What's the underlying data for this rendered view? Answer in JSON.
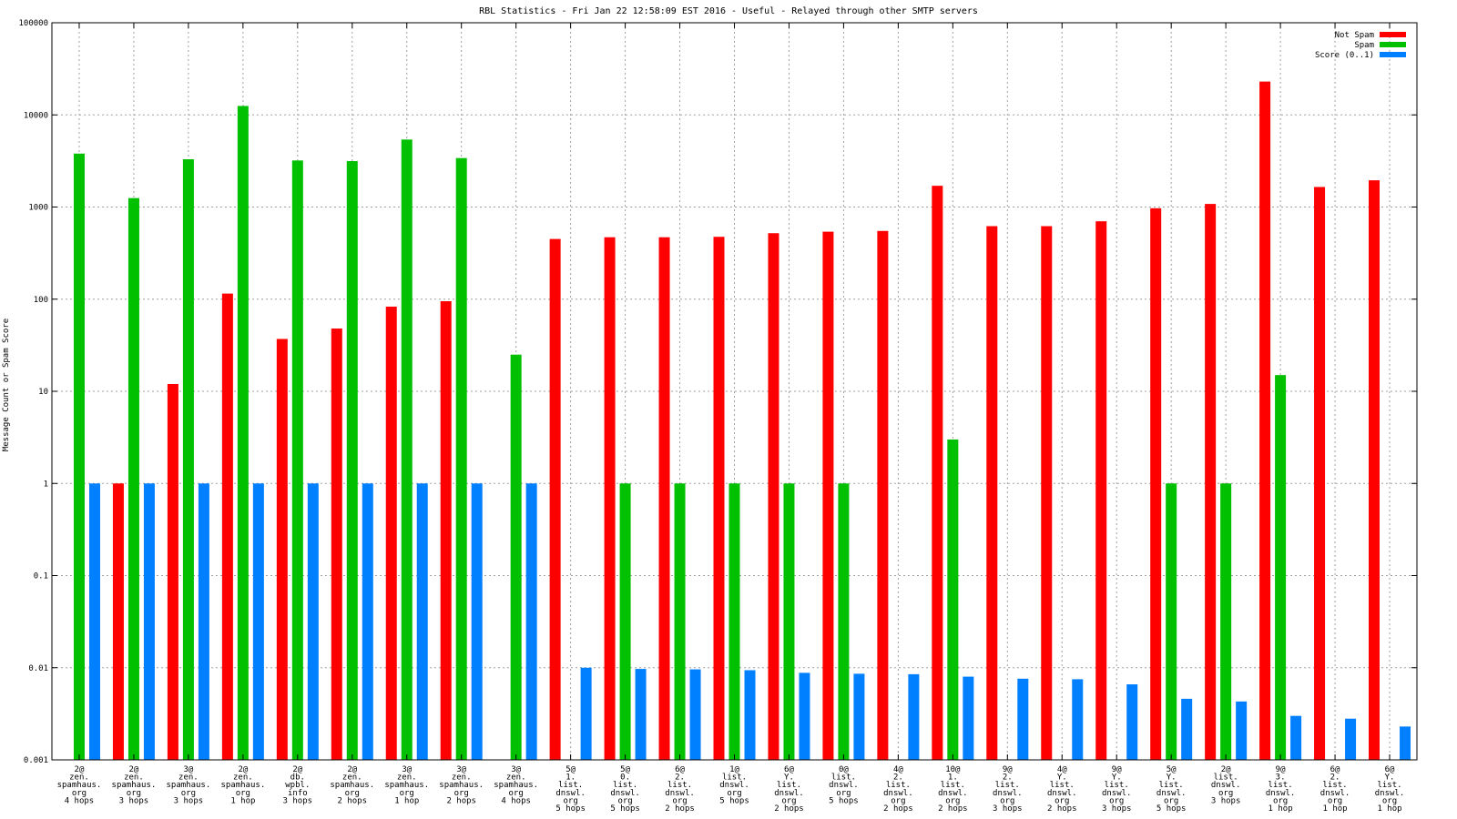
{
  "chart_data": {
    "type": "bar",
    "title": "RBL Statistics - Fri Jan 22 12:58:09 EST 2016 - Useful - Relayed through other SMTP servers",
    "xlabel": "",
    "ylabel": "Message Count or Spam Score",
    "yscale": "log",
    "ylim": [
      0.001,
      100000
    ],
    "yticks": [
      "0.001",
      "0.01",
      "0.1",
      "1",
      "10",
      "100",
      "1000",
      "10000",
      "100000"
    ],
    "grid": true,
    "legend_position": "top-right",
    "categories": [
      [
        "2@",
        "zen.",
        "spamhaus.",
        "org",
        "4 hops"
      ],
      [
        "2@",
        "zen.",
        "spamhaus.",
        "org",
        "3 hops"
      ],
      [
        "3@",
        "zen.",
        "spamhaus.",
        "org",
        "3 hops"
      ],
      [
        "2@",
        "zen.",
        "spamhaus.",
        "org",
        "1 hop"
      ],
      [
        "2@",
        "db.",
        "wpbl.",
        "info",
        "3 hops"
      ],
      [
        "2@",
        "zen.",
        "spamhaus.",
        "org",
        "2 hops"
      ],
      [
        "3@",
        "zen.",
        "spamhaus.",
        "org",
        "1 hop"
      ],
      [
        "3@",
        "zen.",
        "spamhaus.",
        "org",
        "2 hops"
      ],
      [
        "3@",
        "zen.",
        "spamhaus.",
        "org",
        "4 hops"
      ],
      [
        "5@",
        "1.",
        "list.",
        "dnswl.",
        "org",
        "5 hops"
      ],
      [
        "5@",
        "0.",
        "list.",
        "dnswl.",
        "org",
        "5 hops"
      ],
      [
        "6@",
        "2.",
        "list.",
        "dnswl.",
        "org",
        "2 hops"
      ],
      [
        "1@",
        "list.",
        "dnswl.",
        "org",
        "5 hops"
      ],
      [
        "6@",
        "Y.",
        "list.",
        "dnswl.",
        "org",
        "2 hops"
      ],
      [
        "0@",
        "list.",
        "dnswl.",
        "org",
        "5 hops"
      ],
      [
        "4@",
        "2.",
        "list.",
        "dnswl.",
        "org",
        "2 hops"
      ],
      [
        "10@",
        "1.",
        "list.",
        "dnswl.",
        "org",
        "2 hops"
      ],
      [
        "9@",
        "2.",
        "list.",
        "dnswl.",
        "org",
        "3 hops"
      ],
      [
        "4@",
        "Y.",
        "list.",
        "dnswl.",
        "org",
        "2 hops"
      ],
      [
        "9@",
        "Y.",
        "list.",
        "dnswl.",
        "org",
        "3 hops"
      ],
      [
        "5@",
        "Y.",
        "list.",
        "dnswl.",
        "org",
        "5 hops"
      ],
      [
        "2@",
        "list.",
        "dnswl.",
        "org",
        "3 hops"
      ],
      [
        "9@",
        "3.",
        "list.",
        "dnswl.",
        "org",
        "1 hop"
      ],
      [
        "6@",
        "2.",
        "list.",
        "dnswl.",
        "org",
        "1 hop"
      ],
      [
        "6@",
        "Y.",
        "list.",
        "dnswl.",
        "org",
        "1 hop"
      ]
    ],
    "series": [
      {
        "name": "Not Spam",
        "color": "#ff0000",
        "values": [
          null,
          1,
          12,
          115,
          37,
          48,
          83,
          95,
          null,
          450,
          470,
          470,
          475,
          520,
          540,
          550,
          1700,
          620,
          620,
          700,
          970,
          1080,
          23000,
          1650,
          1950
        ]
      },
      {
        "name": "Spam",
        "color": "#00c000",
        "values": [
          3800,
          1250,
          3300,
          12500,
          3200,
          3150,
          5400,
          3400,
          25,
          null,
          1,
          1,
          1,
          1,
          1,
          null,
          3,
          null,
          null,
          null,
          1,
          1,
          15,
          null,
          null
        ]
      },
      {
        "name": "Score (0..1)",
        "color": "#0080ff",
        "values": [
          1,
          1,
          1,
          1,
          1,
          1,
          1,
          1,
          1,
          0.01,
          0.0097,
          0.0096,
          0.0094,
          0.0088,
          0.0086,
          0.0085,
          0.008,
          0.0076,
          0.0075,
          0.0066,
          0.0046,
          0.0043,
          0.003,
          0.0028,
          0.0023
        ]
      }
    ]
  }
}
